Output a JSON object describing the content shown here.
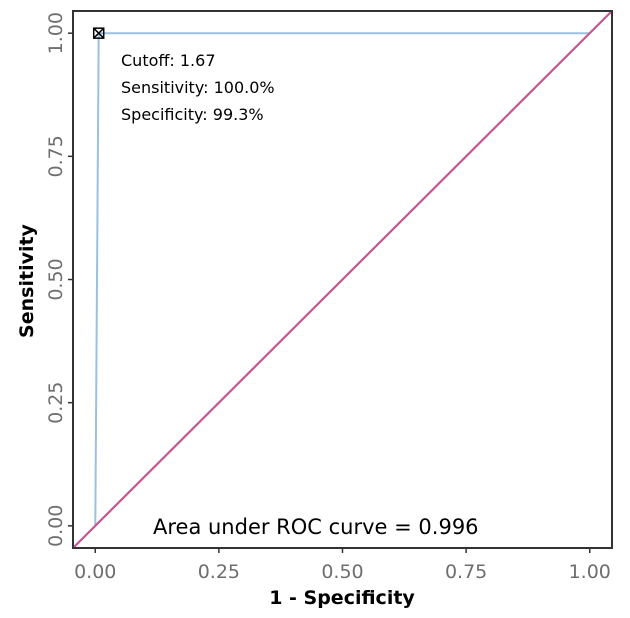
{
  "chart_data": {
    "type": "line",
    "title": "",
    "xlabel": "1 - Specificity",
    "ylabel": "Sensitivity",
    "xlim": [
      -0.045,
      1.045
    ],
    "ylim": [
      -0.045,
      1.045
    ],
    "x_ticks": [
      "0.00",
      "0.25",
      "0.50",
      "0.75",
      "1.00"
    ],
    "y_ticks": [
      "0.00",
      "0.25",
      "0.50",
      "0.75",
      "1.00"
    ],
    "grid": false,
    "series": [
      {
        "color": "#9cc0e0",
        "points": [
          [
            0,
            0
          ],
          [
            0.007,
            1.0
          ],
          [
            1.0,
            1.0
          ]
        ]
      },
      {
        "color": "#c2588f",
        "points": [
          [
            -0.045,
            -0.045
          ],
          [
            1.045,
            1.045
          ]
        ]
      }
    ],
    "optimal_point": {
      "x": 0.007,
      "y": 1.0,
      "labels": [
        "Cutoff: 1.67",
        "Sensitivity: 100.0%",
        "Specificity: 99.3%"
      ]
    },
    "auc_text": "Area under ROC curve =  0.996"
  }
}
